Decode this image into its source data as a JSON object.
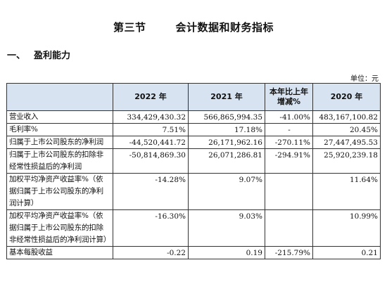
{
  "title": {
    "section_no": "第三节",
    "section_name": "会计数据和财务指标"
  },
  "subsection": {
    "number": "一、",
    "name": "盈利能力"
  },
  "unit_note": "单位：元",
  "table": {
    "headers": [
      "",
      "2022 年",
      "2021 年",
      "本年比上年增减%",
      "2020 年"
    ],
    "rows": [
      {
        "label": "营业收入",
        "y2022": "334,429,430.32",
        "y2021": "566,865,994.35",
        "change": "-41.00%",
        "y2020": "483,167,100.82"
      },
      {
        "label": "毛利率%",
        "y2022": "7.51%",
        "y2021": "17.18%",
        "change": "-",
        "y2020": "20.45%"
      },
      {
        "label": "归属于上市公司股东的净利润",
        "y2022": "-44,520,441.72",
        "y2021": "26,171,962.16",
        "change": "-270.11%",
        "y2020": "27,447,495.53"
      },
      {
        "label": "归属于上市公司股东的扣除非经常性损益后的净利润",
        "y2022": "-50,814,869.30",
        "y2021": "26,071,286.81",
        "change": "-294.91%",
        "y2020": "25,920,239.18"
      },
      {
        "label": "加权平均净资产收益率%（依据归属于上市公司股东的净利润计算）",
        "y2022": "-14.28%",
        "y2021": "9.07%",
        "change": "",
        "y2020": "11.64%"
      },
      {
        "label": "加权平均净资产收益率%（依据归属于上市公司股东的扣除非经常性损益后的净利润计算）",
        "y2022": "-16.30%",
        "y2021": "9.03%",
        "change": "",
        "y2020": "10.99%"
      },
      {
        "label": "基本每股收益",
        "y2022": "-0.22",
        "y2021": "0.19",
        "change": "-215.79%",
        "y2020": "0.21"
      }
    ]
  }
}
